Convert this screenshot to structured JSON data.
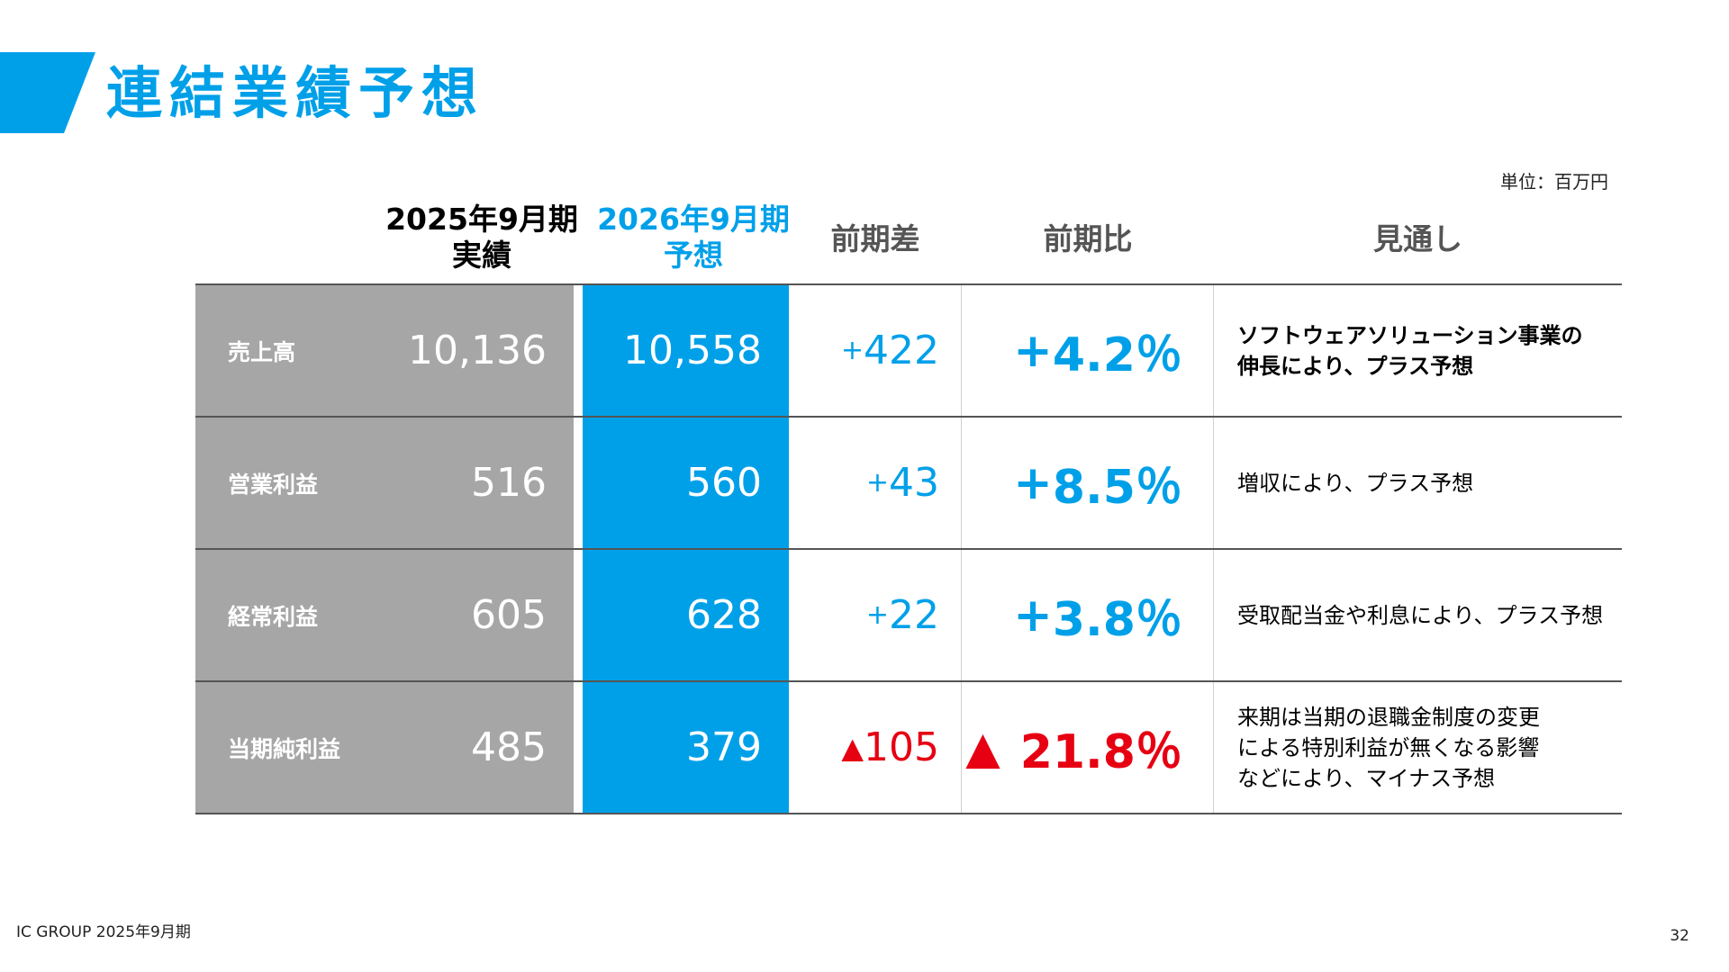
{
  "title": "連結業績予想",
  "unit": "単位：百万円",
  "headers": {
    "prev_line1": "2025年9月期",
    "prev_line2": "実績",
    "fore_line1": "2026年9月期",
    "fore_line2": "予想",
    "diff": "前期差",
    "ratio": "前期比",
    "outlook": "見通し"
  },
  "rows": [
    {
      "label": "売上高",
      "prev": "10,136",
      "forecast": "10,558",
      "diff_sign": "+",
      "diff": "422",
      "ratio_sign": "+",
      "ratio": "4.2％",
      "outlook_line1": "ソフトウェアソリューション事業の",
      "outlook_line2": "伸長により、プラス予想",
      "outlook_line3": ""
    },
    {
      "label": "営業利益",
      "prev": "516",
      "forecast": "560",
      "diff_sign": "+",
      "diff": "43",
      "ratio_sign": "+",
      "ratio": "8.5％",
      "outlook_line1": "増収により、プラス予想",
      "outlook_line2": "",
      "outlook_line3": ""
    },
    {
      "label": "経常利益",
      "prev": "605",
      "forecast": "628",
      "diff_sign": "+",
      "diff": "22",
      "ratio_sign": "+",
      "ratio": "3.8％",
      "outlook_line1": "受取配当金や利息により、プラス予想",
      "outlook_line2": "",
      "outlook_line3": ""
    },
    {
      "label": "当期純利益",
      "prev": "485",
      "forecast": "379",
      "diff_sign": "▲",
      "diff": "105",
      "ratio_sign": "▲",
      "ratio": "21.8％",
      "outlook_line1": "来期は当期の退職金制度の変更",
      "outlook_line2": "による特別利益が無くなる影響",
      "outlook_line3": "などにより、マイナス予想"
    }
  ],
  "footer": {
    "left": "IC GROUP 2025年9月期",
    "page": "32"
  },
  "colors": {
    "accent": "#00a0e9",
    "negative": "#e60012",
    "label_bg": "#a6a6a6"
  }
}
